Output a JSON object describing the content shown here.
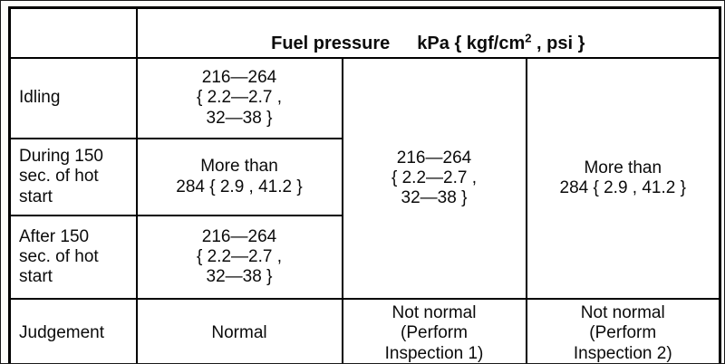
{
  "header": {
    "fuel_pressure": "Fuel pressure",
    "units_prefix": "kPa { kgf/cm",
    "units_sup": "2",
    "units_suffix": " , psi }"
  },
  "rows": [
    {
      "label": "Idling",
      "pressure": "216—264\n{ 2.2—2.7 ,\n32—38 }"
    },
    {
      "label": "During 150\nsec. of hot\nstart",
      "pressure": "More than\n284 { 2.9 , 41.2 }"
    },
    {
      "label": "After 150\nsec. of hot\nstart",
      "pressure": "216—264\n{ 2.2—2.7 ,\n32—38 }"
    }
  ],
  "merged_cells": {
    "inspection1_pressure": "216—264\n{ 2.2—2.7 ,\n32—38 }",
    "inspection2_pressure": "More than\n284 { 2.9 , 41.2 }"
  },
  "judgement_row": {
    "label": "Judgement",
    "normal": "Normal",
    "not_normal_1": "Not normal\n(Perform\nInspection 1)",
    "not_normal_2": "Not normal\n(Perform\nInspection 2)"
  }
}
